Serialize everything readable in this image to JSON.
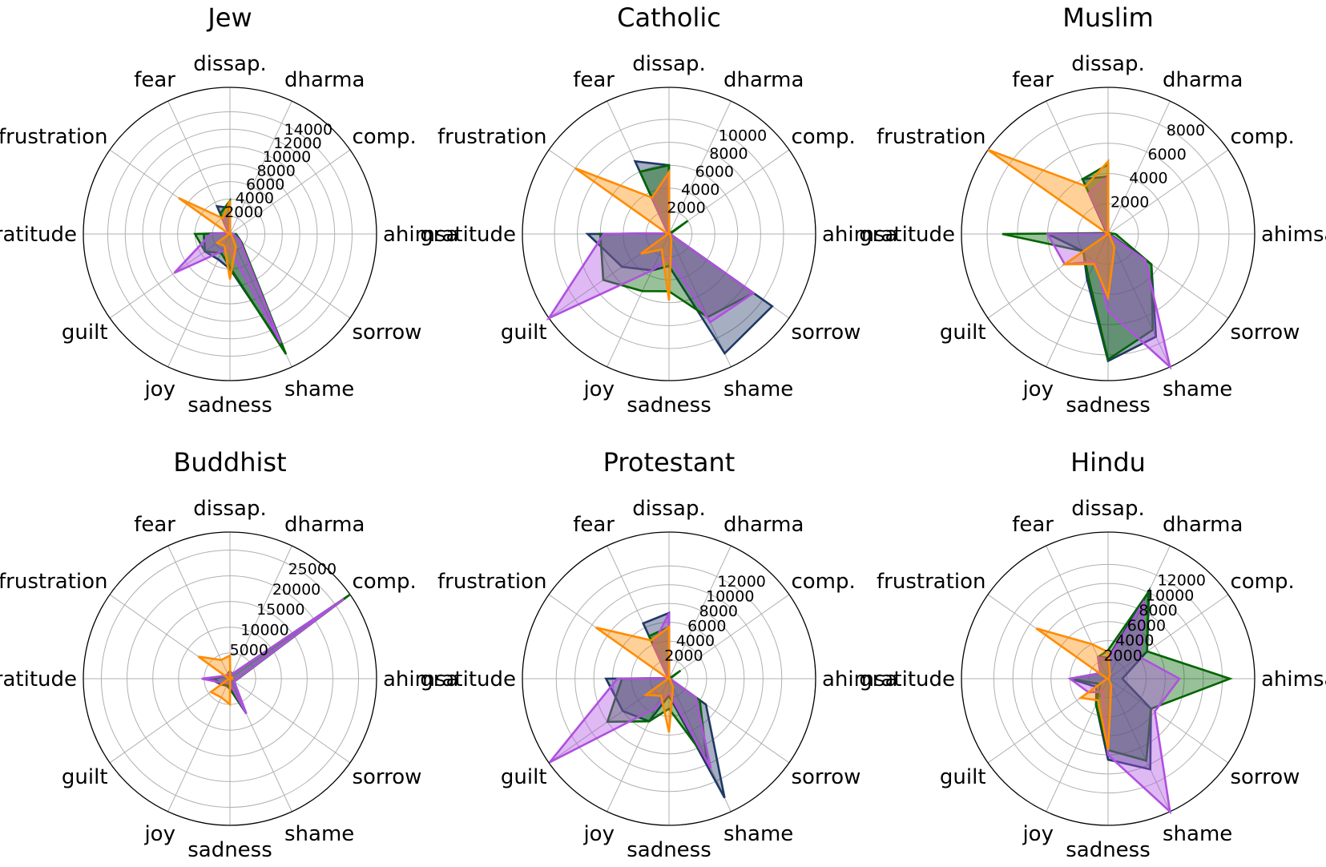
{
  "chart_data": [
    {
      "type": "radar",
      "title": "Jew",
      "axes": [
        "ahimsa",
        "comp.",
        "dharma",
        "dissap.",
        "fear",
        "frustration",
        "gratitude",
        "guilt",
        "joy",
        "sadness",
        "shame",
        "sorrow"
      ],
      "rticks": [
        2000,
        4000,
        6000,
        8000,
        10000,
        12000,
        14000
      ],
      "rmax": 16800,
      "series": [
        {
          "color": "#1f3864",
          "values": [
            600,
            0,
            0,
            3000,
            3500,
            200,
            3000,
            3500,
            3200,
            4000,
            14500,
            1500
          ]
        },
        {
          "color": "#006400",
          "values": [
            700,
            0,
            0,
            3800,
            2600,
            200,
            4000,
            3500,
            2400,
            3800,
            15200,
            1600
          ]
        },
        {
          "color": "#b050e0",
          "values": [
            400,
            0,
            0,
            2200,
            2000,
            200,
            2200,
            7800,
            2200,
            1800,
            13800,
            1400
          ]
        },
        {
          "color": "#ff8c00",
          "values": [
            100,
            0,
            0,
            3800,
            2000,
            7200,
            100,
            1800,
            1500,
            5200,
            1600,
            200
          ]
        }
      ]
    },
    {
      "type": "radar",
      "title": "Catholic",
      "axes": [
        "ahimsa",
        "comp.",
        "dharma",
        "dissap.",
        "fear",
        "frustration",
        "gratitude",
        "guilt",
        "joy",
        "sadness",
        "shame",
        "sorrow"
      ],
      "rticks": [
        2000,
        4000,
        6000,
        8000,
        10000
      ],
      "rmax": 12800,
      "series": [
        {
          "color": "#1f3864",
          "values": [
            100,
            400,
            0,
            6000,
            7000,
            100,
            7100,
            5000,
            3500,
            2800,
            11500,
            11000
          ]
        },
        {
          "color": "#006400",
          "values": [
            100,
            2000,
            0,
            6000,
            6000,
            100,
            6000,
            7000,
            5500,
            5000,
            8000,
            9000
          ]
        },
        {
          "color": "#b050e0",
          "values": [
            100,
            100,
            0,
            5200,
            3500,
            100,
            5700,
            13000,
            3500,
            2100,
            8500,
            9000
          ]
        },
        {
          "color": "#ff8c00",
          "values": [
            100,
            0,
            0,
            5400,
            3500,
            10000,
            100,
            3000,
            1500,
            5800,
            500,
            100
          ]
        }
      ]
    },
    {
      "type": "radar",
      "title": "Muslim",
      "axes": [
        "ahimsa",
        "comp.",
        "dharma",
        "dissap.",
        "fear",
        "frustration",
        "gratitude",
        "guilt",
        "joy",
        "sadness",
        "shame",
        "sorrow"
      ],
      "rticks": [
        2000,
        4000,
        6000,
        8000
      ],
      "rmax": 9700,
      "series": [
        {
          "color": "#1f3864",
          "values": [
            100,
            0,
            0,
            3800,
            4000,
            100,
            4000,
            2000,
            3300,
            8400,
            7500,
            3500
          ]
        },
        {
          "color": "#006400",
          "values": [
            500,
            100,
            0,
            4600,
            4000,
            100,
            7000,
            2000,
            3100,
            8300,
            7000,
            3500
          ]
        },
        {
          "color": "#b050e0",
          "values": [
            0,
            0,
            0,
            3800,
            3000,
            0,
            4000,
            3500,
            2000,
            5100,
            9800,
            3000
          ]
        },
        {
          "color": "#ff8c00",
          "values": [
            100,
            0,
            0,
            4800,
            3500,
            9700,
            0,
            3500,
            2200,
            4200,
            1000,
            100
          ]
        }
      ]
    },
    {
      "type": "radar",
      "title": "Buddhist",
      "axes": [
        "ahimsa",
        "comp.",
        "dharma",
        "dissap.",
        "fear",
        "frustration",
        "gratitude",
        "guilt",
        "joy",
        "sadness",
        "shame",
        "sorrow"
      ],
      "rticks": [
        5000,
        10000,
        15000,
        20000,
        25000
      ],
      "rmax": 28500,
      "series": [
        {
          "color": "#1f3864",
          "values": [
            1500,
            27000,
            1000,
            1000,
            1000,
            1000,
            4000,
            2000,
            1500,
            2000,
            7500,
            1000
          ]
        },
        {
          "color": "#006400",
          "values": [
            1600,
            28500,
            1000,
            1500,
            1000,
            1000,
            3000,
            2000,
            1200,
            2000,
            7000,
            1000
          ]
        },
        {
          "color": "#b050e0",
          "values": [
            1500,
            27000,
            1000,
            1000,
            1000,
            1000,
            5500,
            1500,
            1000,
            1000,
            7500,
            1000
          ]
        },
        {
          "color": "#ff8c00",
          "values": [
            500,
            500,
            200,
            4500,
            4000,
            7500,
            200,
            4500,
            4000,
            5000,
            100,
            100
          ]
        }
      ]
    },
    {
      "type": "radar",
      "title": "Protestant",
      "axes": [
        "ahimsa",
        "comp.",
        "dharma",
        "dissap.",
        "fear",
        "frustration",
        "gratitude",
        "guilt",
        "joy",
        "sadness",
        "shame",
        "sorrow"
      ],
      "rticks": [
        2000,
        4000,
        6000,
        8000,
        10000,
        12000
      ],
      "rmax": 15600,
      "series": [
        {
          "color": "#1f3864",
          "values": [
            100,
            0,
            0,
            7000,
            6500,
            100,
            6700,
            6000,
            5000,
            1800,
            14000,
            4800
          ]
        },
        {
          "color": "#006400",
          "values": [
            100,
            1500,
            0,
            5500,
            5000,
            100,
            5000,
            8000,
            5000,
            3200,
            9500,
            4000
          ]
        },
        {
          "color": "#b050e0",
          "values": [
            100,
            0,
            0,
            7000,
            4000,
            100,
            5500,
            15500,
            3500,
            1500,
            10500,
            3500
          ]
        },
        {
          "color": "#ff8c00",
          "values": [
            100,
            0,
            0,
            5500,
            4500,
            9500,
            100,
            3000,
            2000,
            5700,
            1000,
            100
          ]
        }
      ]
    },
    {
      "type": "radar",
      "title": "Hindu",
      "axes": [
        "ahimsa",
        "comp.",
        "dharma",
        "dissap.",
        "fear",
        "frustration",
        "gratitude",
        "guilt",
        "joy",
        "sadness",
        "shame",
        "sorrow"
      ],
      "rticks": [
        2000,
        4000,
        6000,
        8000,
        10000,
        12000
      ],
      "rmax": 15400,
      "series": [
        {
          "color": "#1f3864",
          "values": [
            1500,
            5000,
            10200,
            2200,
            2500,
            1000,
            4000,
            1500,
            3000,
            8500,
            10500,
            5500
          ]
        },
        {
          "color": "#006400",
          "values": [
            12800,
            5000,
            10000,
            3000,
            2500,
            1000,
            4000,
            1000,
            3000,
            7500,
            9500,
            5500
          ]
        },
        {
          "color": "#b050e0",
          "values": [
            7500,
            4000,
            9000,
            2000,
            2500,
            1000,
            4000,
            2500,
            1500,
            8000,
            15400,
            6000
          ]
        },
        {
          "color": "#ff8c00",
          "values": [
            100,
            100,
            500,
            2800,
            4000,
            9200,
            100,
            3500,
            2500,
            7500,
            800,
            100
          ]
        }
      ]
    }
  ]
}
